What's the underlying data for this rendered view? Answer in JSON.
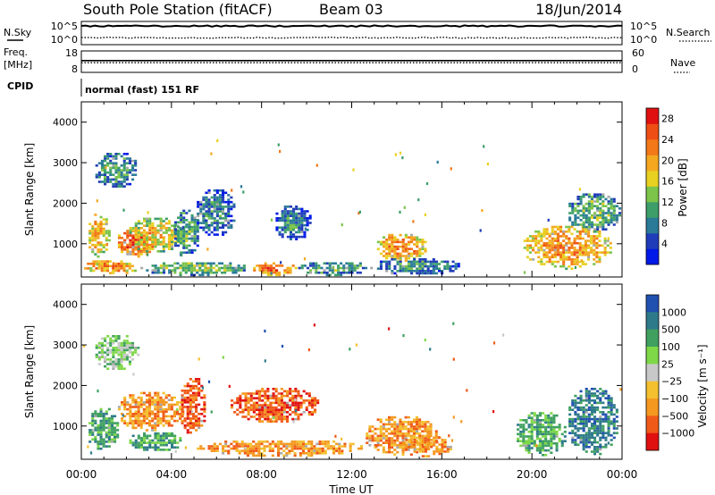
{
  "header": {
    "station": "South Pole Station (fitACF)",
    "beam": "Beam 03",
    "date": "18/Jun/2014"
  },
  "noise_panel": {
    "left_label": "N.Sky",
    "right_label": "N.Search",
    "left_ticks": [
      "10^5",
      "10^0"
    ],
    "right_ticks": [
      "10^5",
      "10^0"
    ],
    "sky_level": 0.8,
    "search_level": 0.3
  },
  "freq_panel": {
    "left_label_1": "Freq.",
    "left_label_2": "[MHz]",
    "right_label": "Nave",
    "left_ticks": [
      "18",
      "8"
    ],
    "right_ticks": [
      "60",
      "0"
    ],
    "freq_level": 0.55,
    "nave_level": 0.45
  },
  "cpid": {
    "label": "CPID",
    "text": "normal (fast) 151 RF"
  },
  "colors": {
    "power": [
      "#0018e8",
      "#203cb8",
      "#2a7a98",
      "#3d9e6a",
      "#7cc44a",
      "#e8d020",
      "#f4a820",
      "#f27818",
      "#ee4e14",
      "#e01010"
    ],
    "velocity": [
      "#e01010",
      "#f05a18",
      "#f49820",
      "#f4c030",
      "#c8c8c8",
      "#7ed848",
      "#3fa060",
      "#2f7a8a",
      "#2050b0"
    ],
    "grey": "#a8a8a8"
  },
  "chart_data": [
    {
      "type": "heatmap",
      "name": "power",
      "ylabel": "Slant Range [km]",
      "ylim": [
        180,
        4500
      ],
      "yticks": [
        1000,
        2000,
        3000,
        4000
      ],
      "xlim": [
        0,
        24
      ],
      "colorbar": {
        "label": "Power [dB]",
        "ticks": [
          "4",
          "8",
          "12",
          "16",
          "20",
          "24",
          "28"
        ],
        "range": [
          0,
          30
        ]
      },
      "echo_regions": [
        {
          "t0": 0.2,
          "t1": 1.2,
          "r0": 700,
          "r1": 1800,
          "value": 20
        },
        {
          "t0": 1.5,
          "t1": 3.2,
          "r0": 700,
          "r1": 1400,
          "value": 26
        },
        {
          "t0": 2.0,
          "t1": 4.5,
          "r0": 800,
          "r1": 1700,
          "value": 18
        },
        {
          "t0": 4.0,
          "t1": 5.2,
          "r0": 700,
          "r1": 1900,
          "value": 12
        },
        {
          "t0": 0.0,
          "t1": 2.5,
          "r0": 250,
          "r1": 650,
          "value": 22
        },
        {
          "t0": 2.5,
          "t1": 7.5,
          "r0": 250,
          "r1": 600,
          "value": 14
        },
        {
          "t0": 7.5,
          "t1": 9.5,
          "r0": 250,
          "r1": 600,
          "value": 24
        },
        {
          "t0": 9.5,
          "t1": 13.0,
          "r0": 250,
          "r1": 600,
          "value": 12
        },
        {
          "t0": 13.0,
          "t1": 15.3,
          "r0": 600,
          "r1": 1300,
          "value": 22
        },
        {
          "t0": 13.0,
          "t1": 16.8,
          "r0": 250,
          "r1": 700,
          "value": 10
        },
        {
          "t0": 19.5,
          "t1": 23.5,
          "r0": 400,
          "r1": 1500,
          "value": 22
        },
        {
          "t0": 21.5,
          "t1": 23.9,
          "r0": 1300,
          "r1": 2300,
          "value": 13
        },
        {
          "t0": 5.0,
          "t1": 6.8,
          "r0": 1200,
          "r1": 2400,
          "value": 9
        },
        {
          "t0": 0.5,
          "t1": 2.5,
          "r0": 2400,
          "r1": 3300,
          "value": 11
        },
        {
          "t0": 8.5,
          "t1": 10.2,
          "r0": 1100,
          "r1": 2000,
          "value": 9
        }
      ]
    },
    {
      "type": "heatmap",
      "name": "velocity",
      "ylabel": "Slant Range [km]",
      "ylim": [
        180,
        4500
      ],
      "yticks": [
        1000,
        2000,
        3000,
        4000
      ],
      "xlim": [
        0,
        24
      ],
      "xlabel": "Time UT",
      "xticks": [
        "00:00",
        "04:00",
        "08:00",
        "12:00",
        "16:00",
        "20:00",
        "00:00"
      ],
      "colorbar": {
        "label": "Velocity [m s⁻¹]",
        "ticks": [
          "1000",
          "500",
          "100",
          "25",
          "−25",
          "−100",
          "−500",
          "−1000"
        ]
      },
      "echo_regions": [
        {
          "t0": 0.2,
          "t1": 1.6,
          "r0": 400,
          "r1": 1500,
          "value": 6
        },
        {
          "t0": 1.5,
          "t1": 4.5,
          "r0": 900,
          "r1": 1900,
          "value": 2
        },
        {
          "t0": 2.0,
          "t1": 4.5,
          "r0": 400,
          "r1": 900,
          "value": 6
        },
        {
          "t0": 4.3,
          "t1": 5.5,
          "r0": 800,
          "r1": 2300,
          "value": 1
        },
        {
          "t0": 5.0,
          "t1": 12.5,
          "r0": 280,
          "r1": 700,
          "value": 2
        },
        {
          "t0": 12.5,
          "t1": 15.8,
          "r0": 300,
          "r1": 1300,
          "value": 2
        },
        {
          "t0": 14.0,
          "t1": 16.5,
          "r0": 280,
          "r1": 800,
          "value": 2
        },
        {
          "t0": 19.2,
          "t1": 21.5,
          "r0": 300,
          "r1": 1400,
          "value": 6
        },
        {
          "t0": 21.5,
          "t1": 23.8,
          "r0": 300,
          "r1": 2000,
          "value": 7
        },
        {
          "t0": 6.5,
          "t1": 10.5,
          "r0": 1100,
          "r1": 2000,
          "value": 1
        },
        {
          "t0": 0.5,
          "t1": 2.5,
          "r0": 2400,
          "r1": 3300,
          "value": 5
        }
      ]
    }
  ]
}
